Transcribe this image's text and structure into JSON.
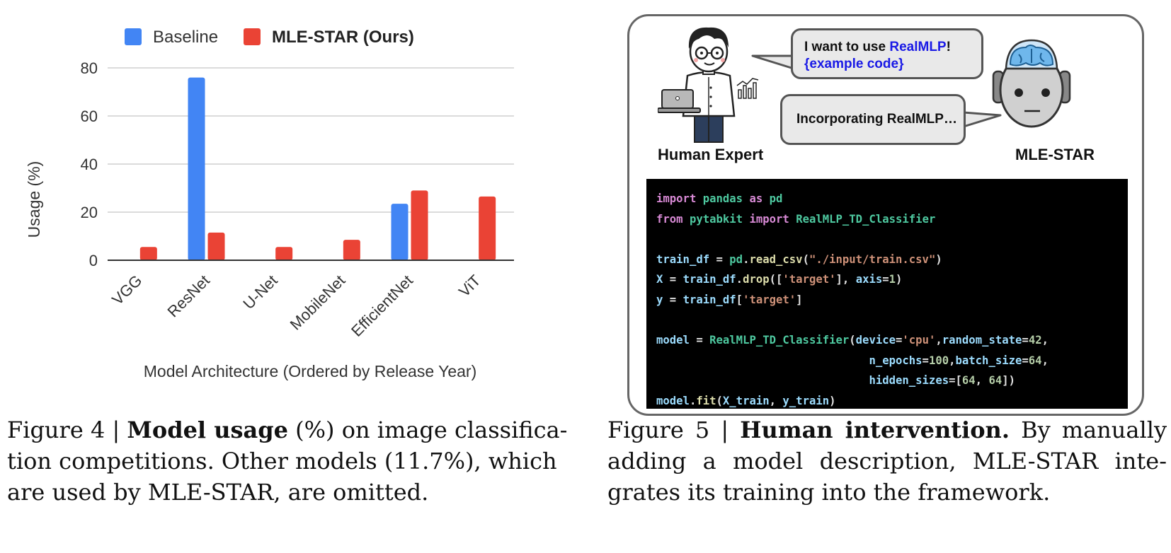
{
  "figure4": {
    "chart_data": {
      "type": "bar",
      "categories": [
        "VGG",
        "ResNet",
        "U-Net",
        "MobileNet",
        "EfficientNet",
        "ViT"
      ],
      "series": [
        {
          "name": "Baseline",
          "color": "#4285f4",
          "values": [
            0,
            76,
            0,
            0,
            23.5,
            0
          ]
        },
        {
          "name": "MLE-STAR (Ours)",
          "color": "#ea4335",
          "values": [
            5.5,
            11.5,
            5.5,
            8.5,
            29,
            26.5
          ]
        }
      ],
      "xlabel": "Model Architecture (Ordered by Release Year)",
      "ylabel": "Usage (%)",
      "ylim": [
        0,
        80
      ],
      "yticks": [
        0,
        20,
        40,
        60,
        80
      ],
      "grid": true,
      "legend_position": "top"
    },
    "caption": {
      "prefix": "Figure 4 | ",
      "bold": "Model usage",
      "line1_rest": " (%) on image classifica-",
      "line2": "tion competitions. Other models (11.7%), which",
      "line3": "are used by MLE-STAR, are omitted."
    }
  },
  "figure5": {
    "expert_bubble": {
      "text_before": "I want to use ",
      "highlight": "RealMLP",
      "text_after": "!",
      "line2": "{example code}"
    },
    "mle_bubble": "Incorporating RealMLP…",
    "expert_label": "Human Expert",
    "mle_label": "MLE-STAR",
    "code": {
      "l1_kw1": "import",
      "l1_mod": "pandas",
      "l1_kw2": "as",
      "l1_alias": "pd",
      "l2_kw1": "from",
      "l2_mod": "pytabkit",
      "l2_kw2": "import",
      "l2_cls": "RealMLP_TD_Classifier",
      "l4_var": "train_df",
      "l4_eq": " = ",
      "l4_obj": "pd",
      "l4_fn": "read_csv",
      "l4_str": "\"./input/train.csv\"",
      "l5_var": "X",
      "l5_obj": "train_df",
      "l5_fn": "drop",
      "l5_str": "'target'",
      "l5_kw": "axis",
      "l5_num": "1",
      "l6_var": "y",
      "l6_obj": "train_df",
      "l6_str": "'target'",
      "l8_var": "model",
      "l8_cls": "RealMLP_TD_Classifier",
      "l8_k1": "device",
      "l8_s1": "'cpu'",
      "l8_k2": "random_state",
      "l8_n2": "42",
      "l9_k1": "n_epochs",
      "l9_n1": "100",
      "l9_k2": "batch_size",
      "l9_n2": "64",
      "l10_k1": "hidden_sizes",
      "l10_n1": "64",
      "l10_n2": "64",
      "l11_obj": "model",
      "l11_fn": "fit",
      "l11_a1": "X_train",
      "l11_a2": "y_train"
    },
    "caption": {
      "prefix": "Figure 5 | ",
      "bold": "Human intervention.",
      "line1_rest": " By manually",
      "line2": "adding a model description, MLE-STAR inte-",
      "line3": "grates its training into the framework."
    }
  }
}
